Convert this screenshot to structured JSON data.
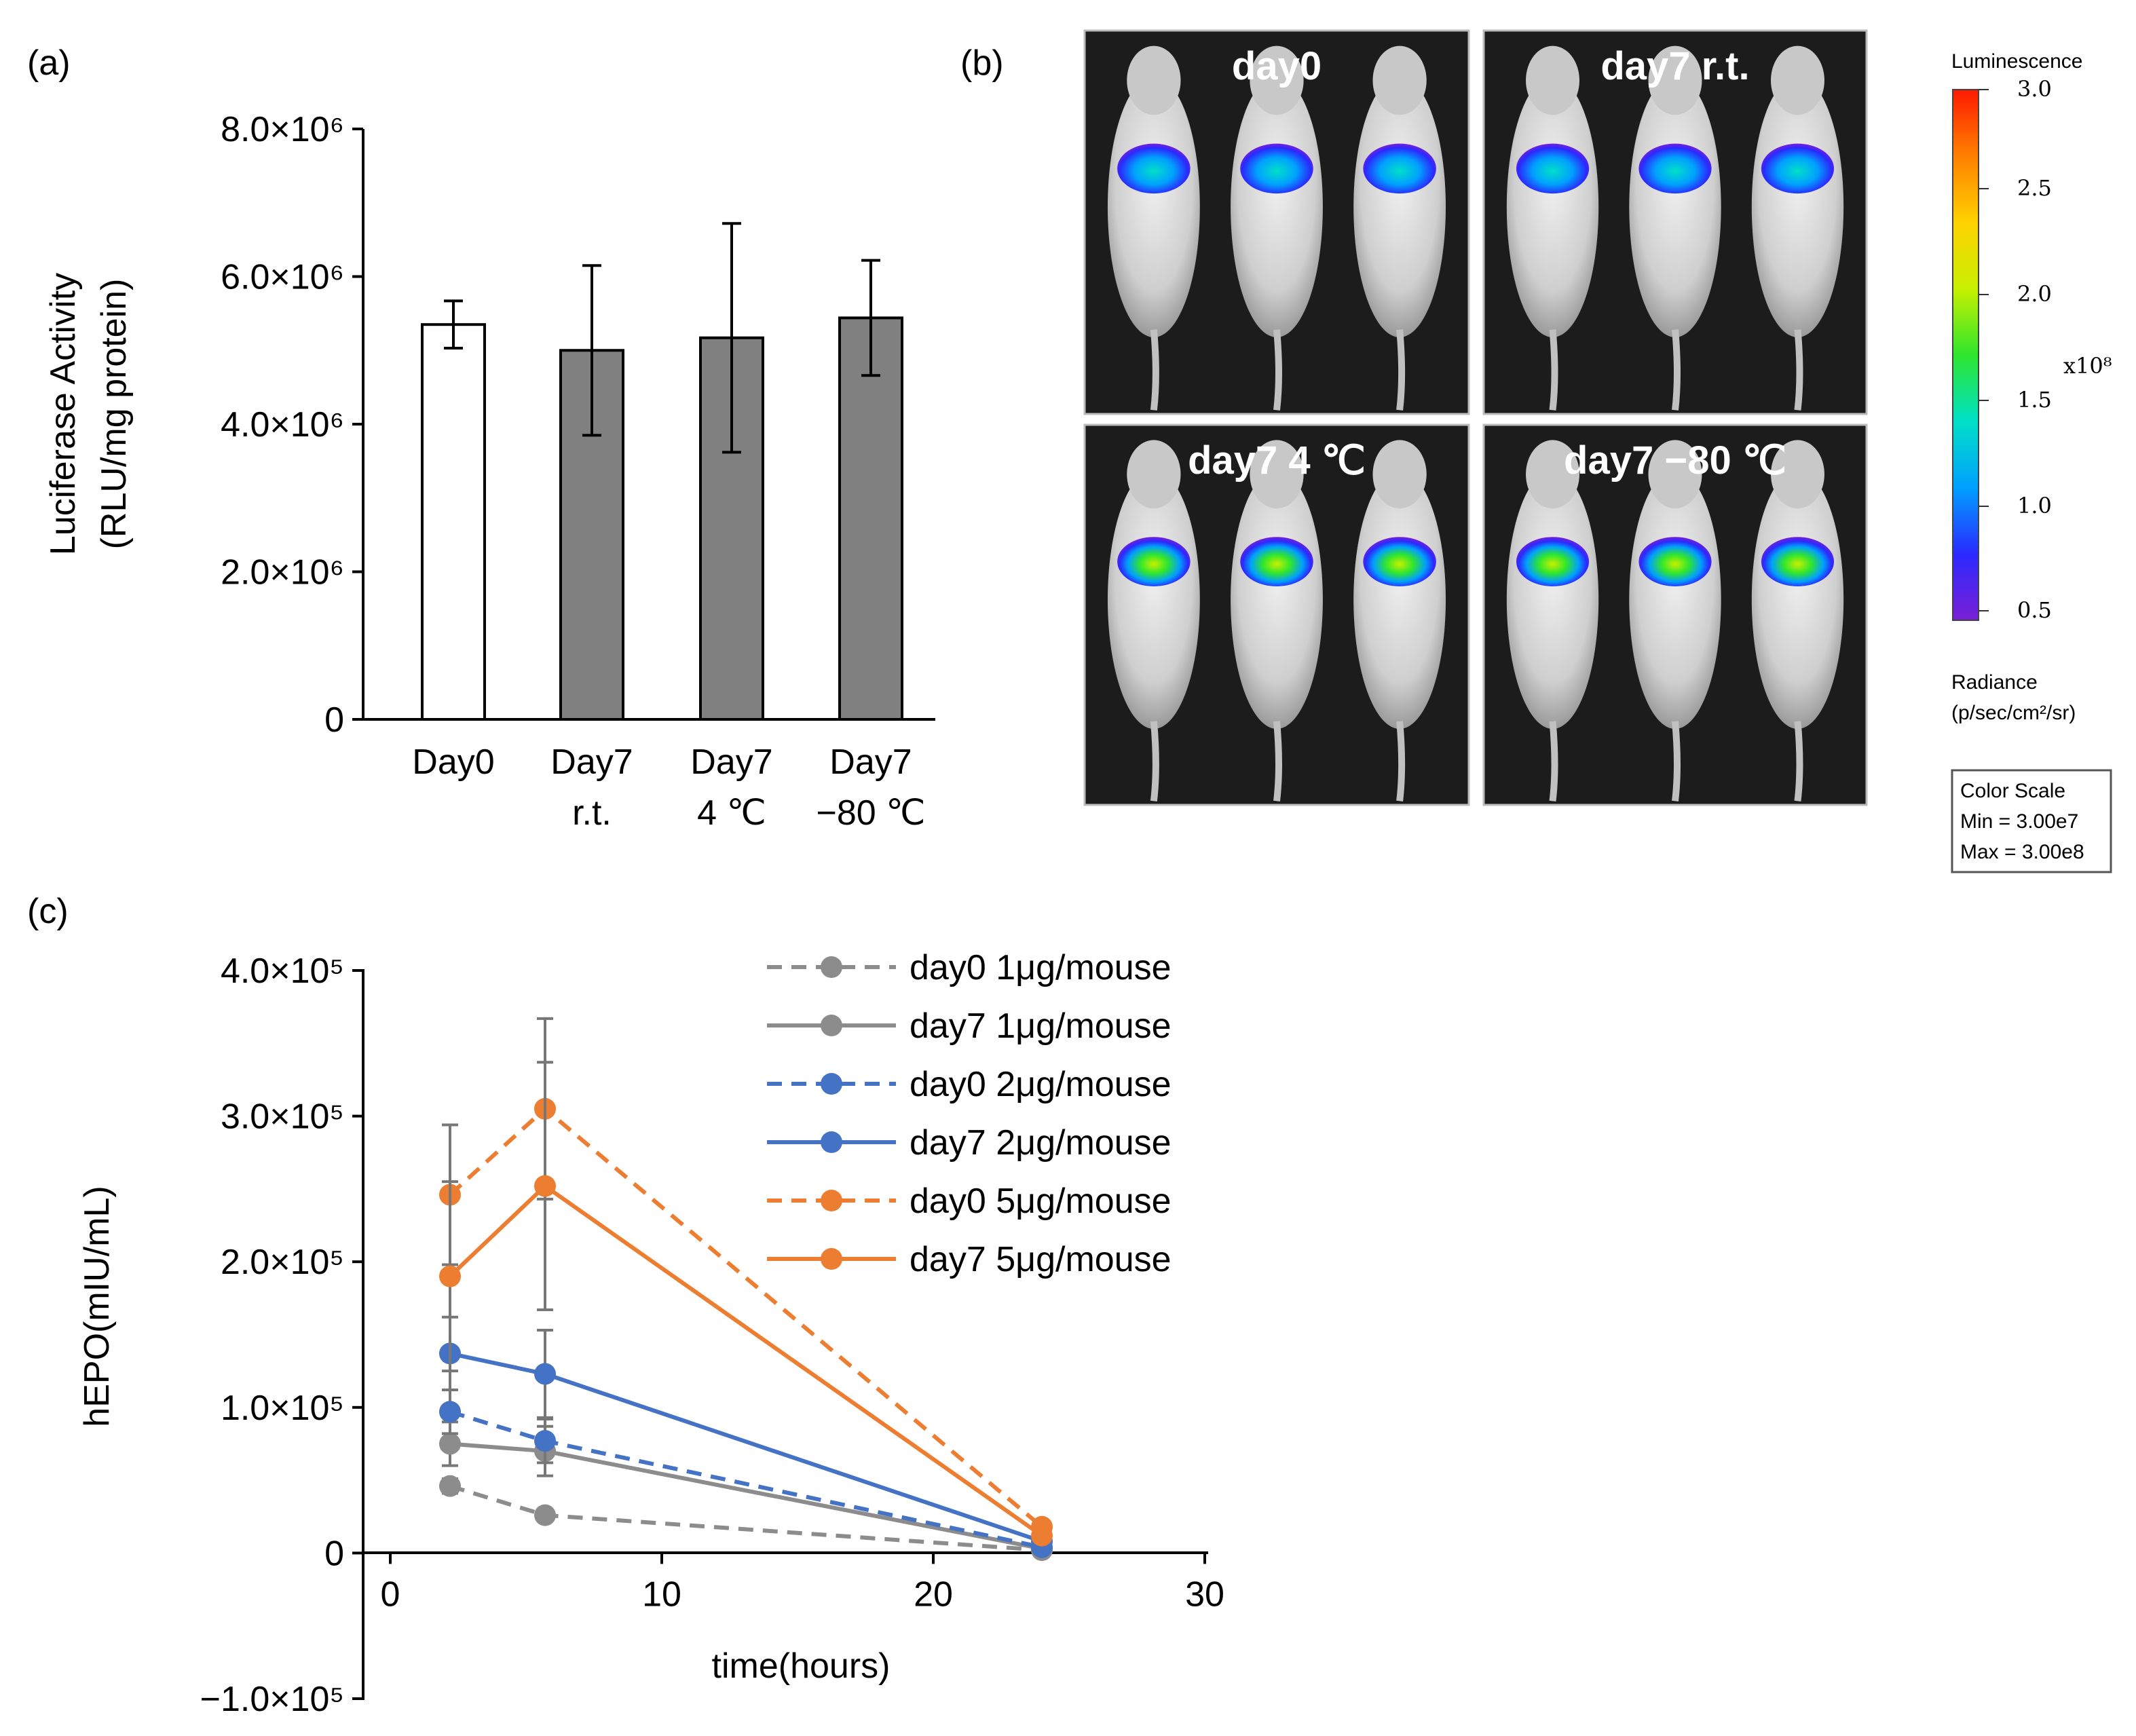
{
  "panels": {
    "a": "(a)",
    "b": "(b)",
    "c": "(c)"
  },
  "chart_data": [
    {
      "type": "bar",
      "panel": "(a)",
      "ylabel_line1": "Luciferase Activity",
      "ylabel_line2": "(RLU/mg protein)",
      "ylim": [
        0,
        8000000
      ],
      "yticks": [
        {
          "value": 0,
          "label": "0"
        },
        {
          "value": 2000000,
          "label": "2.0×10⁶"
        },
        {
          "value": 4000000,
          "label": "4.0×10⁶"
        },
        {
          "value": 6000000,
          "label": "6.0×10⁶"
        },
        {
          "value": 8000000,
          "label": "8.0×10⁶"
        }
      ],
      "categories": [
        {
          "line1": "Day0",
          "line2": ""
        },
        {
          "line1": "Day7",
          "line2": "r.t."
        },
        {
          "line1": "Day7",
          "line2": "4 ℃"
        },
        {
          "line1": "Day7",
          "line2": "−80 ℃"
        }
      ],
      "values": [
        5350000,
        5000000,
        5170000,
        5440000
      ],
      "errors": [
        320000,
        1150000,
        1550000,
        780000
      ],
      "colors": [
        "#ffffff",
        "#808080",
        "#808080",
        "#808080"
      ]
    },
    {
      "type": "image-grid",
      "panel": "(b)",
      "images": [
        "day0",
        "day7 r.t.",
        "day7 4 ℃",
        "day7  −80 ℃"
      ],
      "colorbar": {
        "title": "Luminescence",
        "ticks": [
          "3.0",
          "2.5",
          "2.0",
          "1.5",
          "1.0",
          "0.5"
        ],
        "multiplier": "x10⁸",
        "unit_line1": "Radiance",
        "unit_line2": "(p/sec/cm²/sr)",
        "scale_title": "Color Scale",
        "scale_min": "Min = 3.00e7",
        "scale_max": "Max = 3.00e8",
        "colors": [
          "#7a1fd6",
          "#2a2aff",
          "#00a0ff",
          "#00e0c8",
          "#2ee62e",
          "#c8f000",
          "#ffd200",
          "#ff8000",
          "#ff1a00"
        ]
      }
    },
    {
      "type": "line",
      "panel": "(c)",
      "xlabel": "time(hours)",
      "ylabel": "hEPO(mIU/mL)",
      "xlim": [
        0,
        30
      ],
      "ylim": [
        -100000,
        400000
      ],
      "xticks": [
        {
          "value": 0,
          "label": "0"
        },
        {
          "value": 10,
          "label": "10"
        },
        {
          "value": 20,
          "label": "20"
        },
        {
          "value": 30,
          "label": "30"
        }
      ],
      "yticks": [
        {
          "value": -100000,
          "label": "−1.0×10⁵"
        },
        {
          "value": 0,
          "label": "0"
        },
        {
          "value": 100000,
          "label": "1.0×10⁵"
        },
        {
          "value": 200000,
          "label": "2.0×10⁵"
        },
        {
          "value": 300000,
          "label": "3.0×10⁵"
        },
        {
          "value": 400000,
          "label": "4.0×10⁵"
        }
      ],
      "x": [
        2.2,
        5.7,
        24
      ],
      "series": [
        {
          "name": "day0 1μg/mouse",
          "color": "#8c8c8c",
          "dashed": true,
          "values": [
            46000,
            26000,
            2000
          ],
          "errors": [
            5000,
            4000,
            1000
          ]
        },
        {
          "name": "day7 1μg/mouse",
          "color": "#8c8c8c",
          "dashed": false,
          "values": [
            75000,
            70000,
            3000
          ],
          "errors": [
            15000,
            17000,
            1000
          ]
        },
        {
          "name": "day0 2μg/mouse",
          "color": "#4472c4",
          "dashed": true,
          "values": [
            97000,
            77000,
            4000
          ],
          "errors": [
            15000,
            15000,
            1000
          ]
        },
        {
          "name": "day7 2μg/mouse",
          "color": "#4472c4",
          "dashed": false,
          "values": [
            137000,
            123000,
            8000
          ],
          "errors": [
            25000,
            30000,
            2000
          ]
        },
        {
          "name": "day0 5μg/mouse",
          "color": "#ed7d31",
          "dashed": true,
          "values": [
            246000,
            305000,
            18000
          ],
          "errors": [
            48000,
            62000,
            3000
          ]
        },
        {
          "name": "day7 5μg/mouse",
          "color": "#ed7d31",
          "dashed": false,
          "values": [
            190000,
            252000,
            12000
          ],
          "errors": [
            65000,
            85000,
            2000
          ]
        }
      ]
    }
  ]
}
